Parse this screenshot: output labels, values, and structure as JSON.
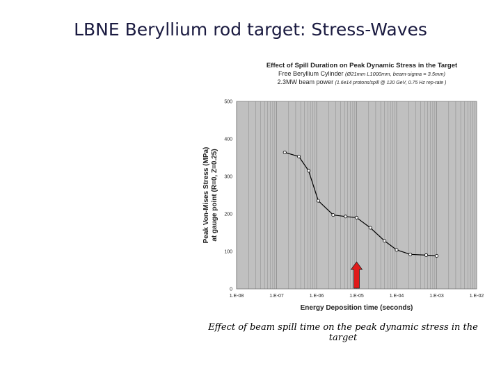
{
  "slide": {
    "title": "LBNE Beryllium rod target: Stress-Waves",
    "caption": "Effect of beam spill time on the peak dynamic stress in the target"
  },
  "chart_data": {
    "type": "line",
    "title": "Effect of Spill Duration on Peak Dynamic Stress in the Target",
    "subtitle_1_main": "Free Beryllium Cylinder ",
    "subtitle_1_detail": "(Ø21mm L1000mm, beam-sigma = 3.5mm)",
    "subtitle_2_main": "2.3MW beam power ",
    "subtitle_2_detail": "(1.6e14 protons/spill @ 120 GeV, 0.75 Hz rep-rate )",
    "xlabel": "Energy Deposition time (seconds)",
    "ylabel_line1": "Peak Von-Mises Stress (MPa)",
    "ylabel_line2": "at gauge point (R=0, Z=0.25)",
    "x_scale": "log",
    "xlim": [
      1e-08,
      0.01
    ],
    "ylim": [
      0,
      500
    ],
    "x_ticks": [
      1e-08,
      1e-07,
      1e-06,
      1e-05,
      0.0001,
      0.001,
      0.01
    ],
    "x_tick_labels": [
      "1.E-08",
      "1.E-07",
      "1.E-06",
      "1.E-05",
      "1.E-04",
      "1.E-03",
      "1.E-02"
    ],
    "y_ticks": [
      0,
      100,
      200,
      300,
      400,
      500
    ],
    "y_tick_labels": [
      "0",
      "100",
      "200",
      "300",
      "400",
      "500"
    ],
    "grid": "vertical",
    "series": [
      {
        "x": [
          1.6e-07,
          3.6e-07,
          6.3e-07,
          1.1e-06,
          2.6e-06,
          5.3e-06,
          1e-05,
          2.2e-05,
          5e-05,
          0.0001,
          0.00022,
          0.00055,
          0.001
        ],
        "values": [
          364,
          353,
          315,
          235,
          197,
          193,
          190,
          163,
          128,
          104,
          92,
          90,
          88
        ]
      }
    ],
    "annotation": "red-arrow",
    "annotation_x": 1e-05,
    "annotation_y": [
      0,
      72
    ],
    "colors": {
      "plot_bg": "#c0c0c0",
      "grid": "#8a8a8a",
      "line": "#000000",
      "marker_fill": "#ffffff",
      "arrow": "#e01a1a"
    }
  }
}
